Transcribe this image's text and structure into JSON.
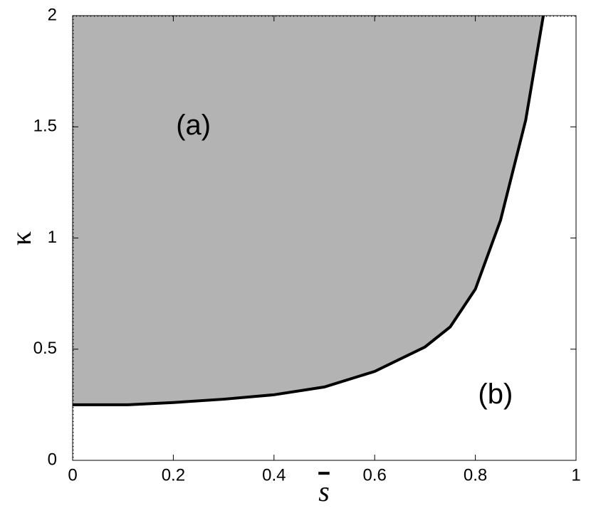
{
  "chart_data": {
    "type": "area",
    "x_label": "s",
    "y_label": "κ",
    "annotations": [
      "(a)",
      "(b)"
    ],
    "x": [
      0,
      0.11,
      0.2,
      0.3,
      0.4,
      0.5,
      0.6,
      0.7,
      0.75,
      0.8,
      0.85,
      0.9,
      0.935
    ],
    "values": [
      0.25,
      0.25,
      0.26,
      0.275,
      0.295,
      0.33,
      0.4,
      0.51,
      0.6,
      0.77,
      1.08,
      1.53,
      2
    ],
    "color": "#b3b3b3",
    "xlim": [
      0,
      1
    ],
    "xticks": [
      0,
      0.2,
      0.4,
      0.6,
      0.8,
      1
    ],
    "ylim": [
      0,
      2
    ],
    "yticks": [
      0,
      0.5,
      1,
      1.5,
      2
    ]
  }
}
